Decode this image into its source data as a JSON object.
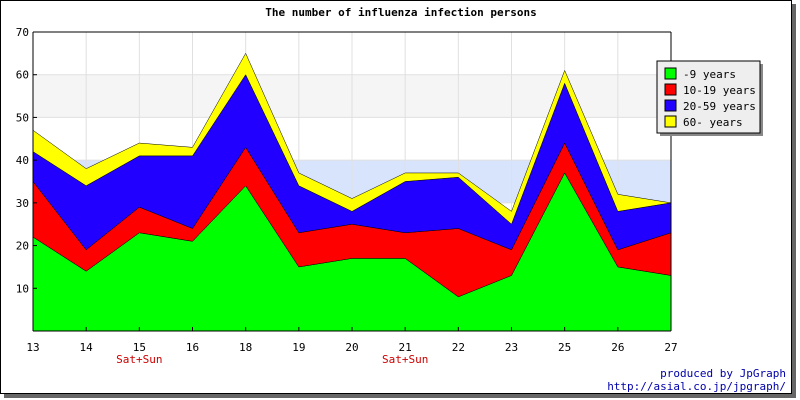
{
  "chart_data": {
    "type": "area",
    "stacked": true,
    "title": "The number of influenza infection persons",
    "xlabel": "",
    "ylabel": "",
    "categories": [
      "13",
      "14",
      "15",
      "16",
      "18",
      "19",
      "20",
      "21",
      "22",
      "23",
      "25",
      "26",
      "27"
    ],
    "weekend_labels": [
      {
        "category": "15",
        "text": "Sat+Sun"
      },
      {
        "category": "21",
        "text": "Sat+Sun"
      }
    ],
    "ylim": [
      0,
      70
    ],
    "yticks": [
      10,
      20,
      30,
      40,
      50,
      60,
      70
    ],
    "grid": true,
    "legend_position": "top-right",
    "series": [
      {
        "name": "-9 years",
        "color": "#00ff00",
        "values": [
          22,
          14,
          23,
          21,
          34,
          15,
          17,
          17,
          8,
          13,
          37,
          15,
          13
        ]
      },
      {
        "name": "10-19 years",
        "color": "#ff0000",
        "values": [
          13,
          5,
          6,
          3,
          9,
          8,
          8,
          6,
          16,
          6,
          7,
          4,
          10
        ]
      },
      {
        "name": "20-59 years",
        "color": "#2200ff",
        "values": [
          7,
          15,
          12,
          17,
          17,
          11,
          3,
          12,
          12,
          6,
          14,
          9,
          7
        ]
      },
      {
        "name": "60- years",
        "color": "#ffff00",
        "values": [
          5,
          4,
          3,
          2,
          5,
          3,
          3,
          2,
          1,
          3,
          3,
          4,
          0
        ]
      }
    ]
  },
  "credits": {
    "line1": "produced by JpGraph",
    "line2": "http://asial.co.jp/jpgraph/"
  }
}
